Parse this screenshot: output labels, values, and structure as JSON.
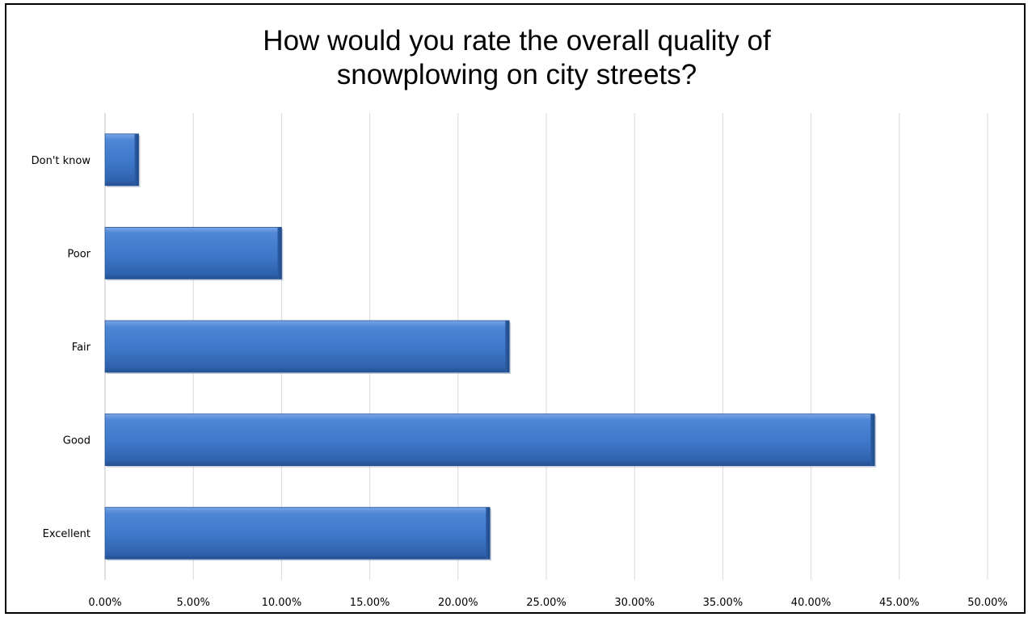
{
  "chart_data": {
    "type": "bar",
    "orientation": "horizontal",
    "title_lines": [
      "How would you rate the overall quality of",
      "snowplowing on city streets?"
    ],
    "categories": [
      "Don't know",
      "Poor",
      "Fair",
      "Good",
      "Excellent"
    ],
    "values": [
      1.9,
      10.0,
      22.9,
      43.6,
      21.8
    ],
    "value_unit": "%",
    "xlim": [
      0,
      50
    ],
    "xticks": [
      "0.00%",
      "5.00%",
      "10.00%",
      "15.00%",
      "20.00%",
      "25.00%",
      "30.00%",
      "35.00%",
      "40.00%",
      "45.00%",
      "50.00%"
    ],
    "grid": "vertical",
    "legend": "none",
    "bar_color": "#4472c4"
  }
}
